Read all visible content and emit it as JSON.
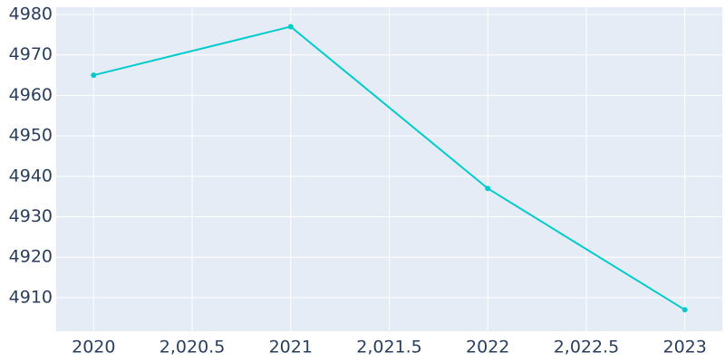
{
  "chart_data": {
    "type": "line",
    "x": [
      2020,
      2021,
      2022,
      2023
    ],
    "values": [
      4965,
      4977,
      4937,
      4907
    ],
    "color": "#00cccc",
    "xlim": [
      2019.81,
      2023.19
    ],
    "xticks": [
      2020,
      {
        "value": 2020.5,
        "label": "2,020.5"
      },
      2021,
      {
        "value": 2021.5,
        "label": "2,021.5"
      },
      2022,
      {
        "value": 2022.5,
        "label": "2,022.5"
      },
      2023
    ],
    "ylim": [
      4901.7,
      4981.8
    ],
    "yticks": [
      4910,
      4920,
      4930,
      4940,
      4950,
      4960,
      4970,
      4980
    ],
    "grid": true
  }
}
